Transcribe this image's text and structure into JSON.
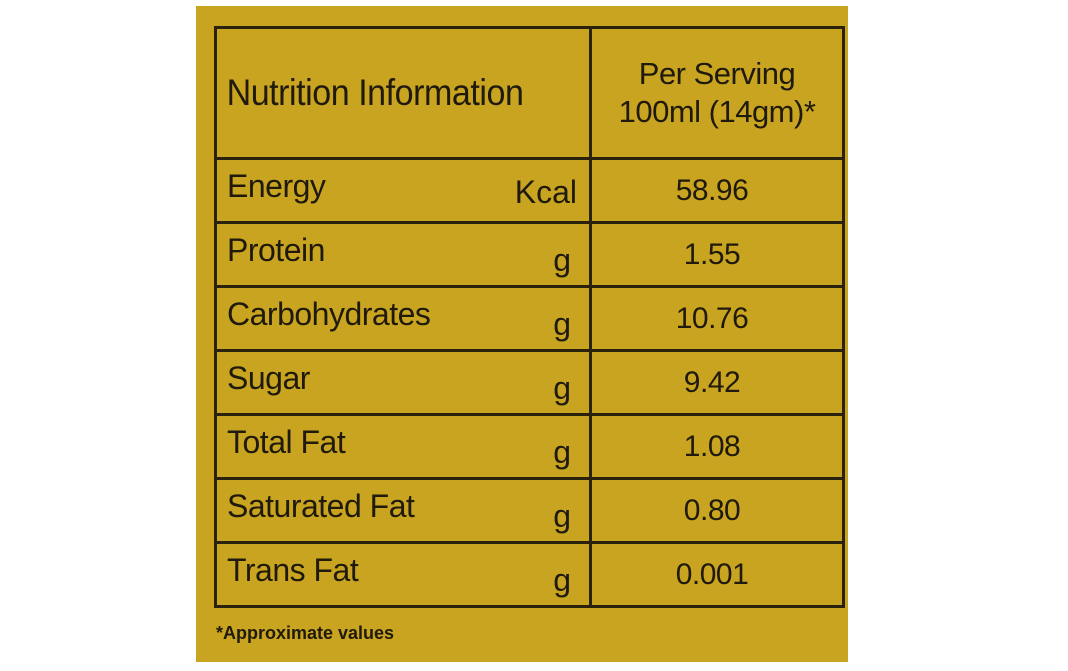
{
  "table": {
    "title": "Nutrition Information",
    "serving_line1": "Per Serving",
    "serving_line2": "100ml (14gm)*",
    "rows": [
      {
        "name": "Energy",
        "unit": "Kcal",
        "value": "58.96"
      },
      {
        "name": "Protein",
        "unit": "g",
        "value": "1.55"
      },
      {
        "name": "Carbohydrates",
        "unit": "g",
        "value": "10.76"
      },
      {
        "name": "Sugar",
        "unit": "g",
        "value": "9.42"
      },
      {
        "name": "Total Fat",
        "unit": "g",
        "value": "1.08"
      },
      {
        "name": "Saturated Fat",
        "unit": "g",
        "value": "0.80"
      },
      {
        "name": "Trans Fat",
        "unit": "g",
        "value": "0.001"
      }
    ]
  },
  "footnote": "*Approximate values",
  "colors": {
    "background": "#c9a421",
    "ink": "#1f1a0c"
  }
}
